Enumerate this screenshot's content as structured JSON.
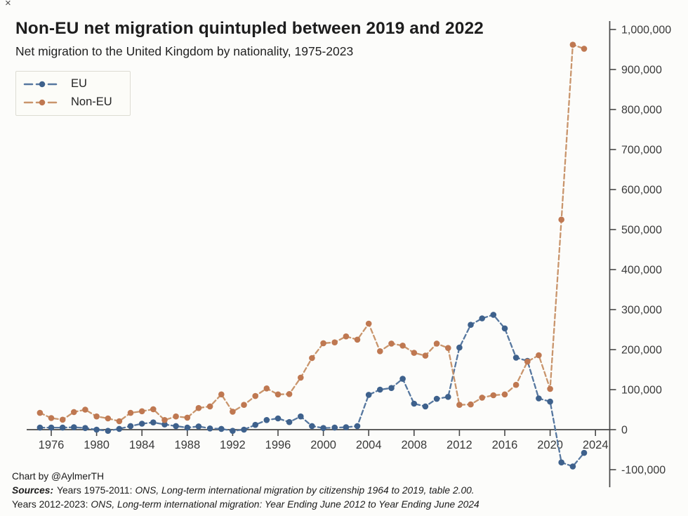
{
  "page": {
    "close_mark": "×"
  },
  "footer": {
    "credit": "Chart by @AylmerTH",
    "sources_label": "Sources:",
    "line1_prefix": "Years 1975-2011:",
    "line1_source": "ONS, Long-term international migration by citizenship 1964 to 2019, table 2.00.",
    "line2_prefix": "Years 2012-2023:",
    "line2_source": "ONS, Long-term international migration: Year Ending June 2012 to Year Ending June 2024"
  },
  "chart_data": {
    "type": "line",
    "title": "Non-EU net migration quintupled between 2019 and 2022",
    "subtitle": "Net migration to the United Kingdom by nationality, 1975-2023",
    "xlabel": "",
    "ylabel": "",
    "grid": false,
    "legend_position": "upper-left",
    "y_axis_side": "right",
    "xlim": [
      1974,
      2025.5
    ],
    "ylim": [
      -130000,
      1030000
    ],
    "xticks": [
      1976,
      1980,
      1984,
      1988,
      1992,
      1996,
      2000,
      2004,
      2008,
      2012,
      2016,
      2020,
      2024
    ],
    "yticks": [
      -100000,
      0,
      100000,
      200000,
      300000,
      400000,
      500000,
      600000,
      700000,
      800000,
      900000,
      1000000
    ],
    "x": [
      1975,
      1976,
      1977,
      1978,
      1979,
      1980,
      1981,
      1982,
      1983,
      1984,
      1985,
      1986,
      1987,
      1988,
      1989,
      1990,
      1991,
      1992,
      1993,
      1994,
      1995,
      1996,
      1997,
      1998,
      1999,
      2000,
      2001,
      2002,
      2003,
      2004,
      2005,
      2006,
      2007,
      2008,
      2009,
      2010,
      2011,
      2012,
      2013,
      2014,
      2015,
      2016,
      2017,
      2018,
      2019,
      2020,
      2021,
      2022,
      2023
    ],
    "series": [
      {
        "name": "EU",
        "color": "#56779f",
        "marker_color": "#3e618c",
        "values": [
          5000,
          5000,
          5000,
          6000,
          4000,
          0,
          -3000,
          2000,
          9000,
          15000,
          18000,
          13000,
          9000,
          5000,
          8000,
          3000,
          2000,
          -3000,
          0,
          12000,
          24000,
          28000,
          19000,
          33000,
          9000,
          4000,
          5000,
          6000,
          9000,
          87000,
          100000,
          104000,
          127000,
          65000,
          58000,
          77000,
          82000,
          205000,
          262000,
          278000,
          287000,
          253000,
          180000,
          172000,
          78000,
          70000,
          -82000,
          -92000,
          -58000
        ]
      },
      {
        "name": "Non-EU",
        "color": "#c9956c",
        "marker_color": "#bf7851",
        "values": [
          42000,
          29000,
          25000,
          44000,
          50000,
          33000,
          28000,
          21000,
          42000,
          46000,
          51000,
          24000,
          33000,
          30000,
          54000,
          58000,
          88000,
          45000,
          62000,
          84000,
          103000,
          88000,
          89000,
          130000,
          179000,
          216000,
          218000,
          233000,
          225000,
          265000,
          196000,
          215000,
          210000,
          192000,
          185000,
          215000,
          204000,
          62000,
          63000,
          80000,
          86000,
          88000,
          112000,
          170000,
          186000,
          102000,
          525000,
          962000,
          952000
        ]
      }
    ]
  }
}
